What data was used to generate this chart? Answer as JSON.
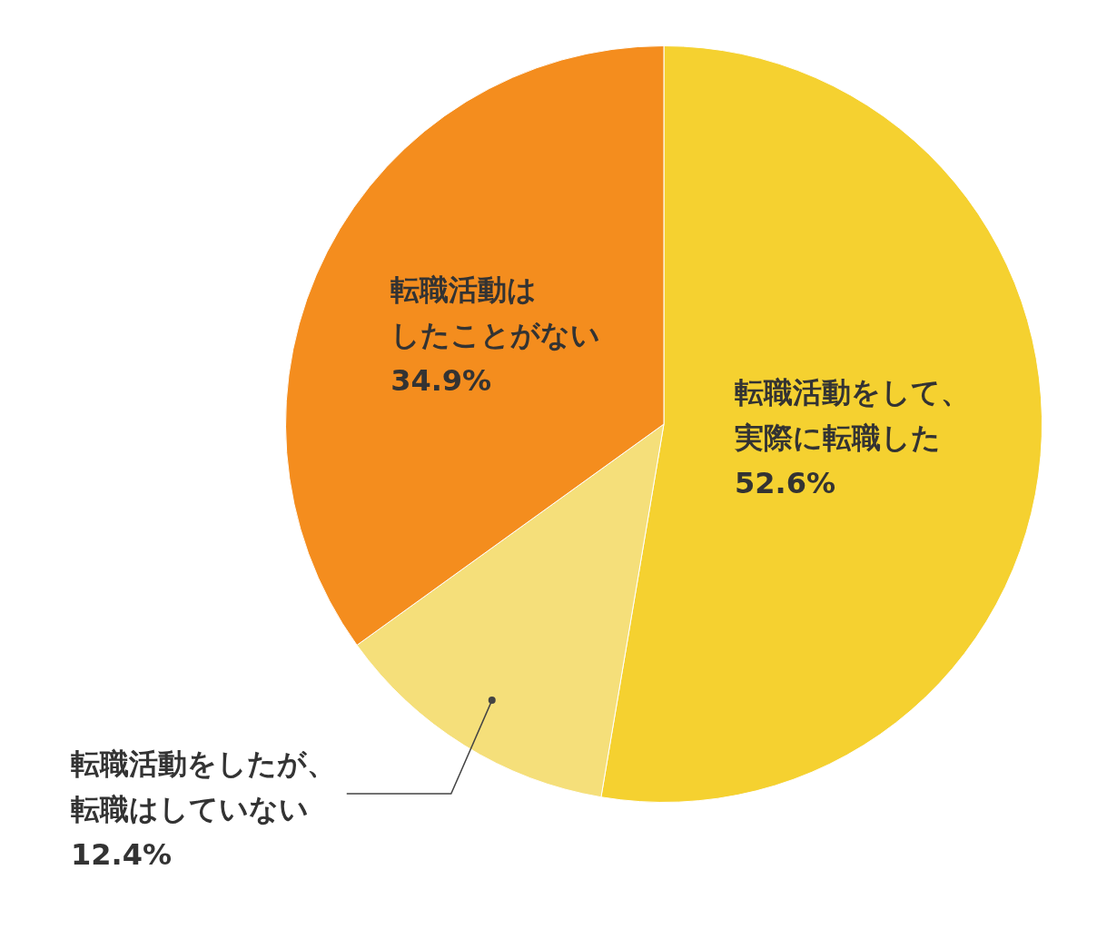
{
  "chart_data": {
    "type": "pie",
    "categories": [
      "転職活動をして、実際に転職した",
      "転職活動をしたが、転職はしていない",
      "転職活動はしたことがない"
    ],
    "values": [
      52.6,
      12.4,
      34.9
    ],
    "colors": [
      "#f5d130",
      "#f5df7a",
      "#f48d1e"
    ],
    "value_labels": [
      "52.6%",
      "12.4%",
      "34.9%"
    ],
    "legend": false
  }
}
